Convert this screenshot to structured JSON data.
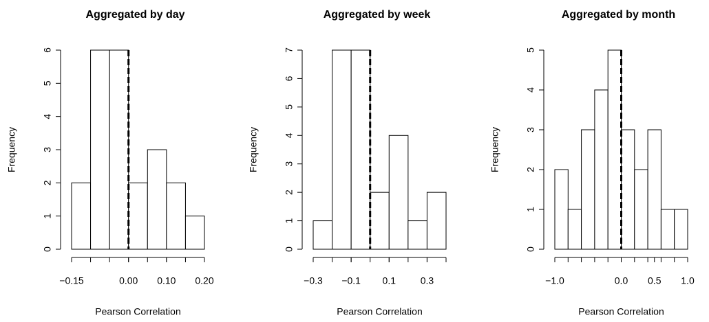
{
  "chart_data": [
    {
      "type": "histogram",
      "title": "Aggregated by day",
      "x_label": "Pearson Correlation",
      "y_label": "Frequency",
      "bins": [
        -0.15,
        -0.1,
        -0.05,
        0,
        0.05,
        0.1,
        0.15,
        0.2
      ],
      "values": [
        2,
        6,
        6,
        2,
        3,
        2,
        1
      ],
      "xlim": [
        -0.15,
        0.2
      ],
      "xticks": [
        {
          "value": -0.15,
          "label": "−0.15"
        },
        {
          "value": 0,
          "label": "0.00"
        },
        {
          "value": 0.1,
          "label": "0.10"
        },
        {
          "value": 0.2,
          "label": "0.20"
        }
      ],
      "ylim": [
        0,
        6
      ],
      "yticks": [
        0,
        1,
        2,
        3,
        4,
        5,
        6
      ],
      "vline": 0,
      "color": "#ffffff"
    },
    {
      "type": "histogram",
      "title": "Aggregated by week",
      "x_label": "Pearson Correlation",
      "y_label": "Frequency",
      "bins": [
        -0.3,
        -0.2,
        -0.1,
        0,
        0.1,
        0.2,
        0.3,
        0.4
      ],
      "values": [
        1,
        7,
        7,
        2,
        4,
        1,
        2
      ],
      "xlim": [
        -0.3,
        0.4
      ],
      "xticks": [
        {
          "value": -0.3,
          "label": "−0.3"
        },
        {
          "value": -0.1,
          "label": "−0.1"
        },
        0.1,
        0.3
      ],
      "ylim": [
        0,
        7
      ],
      "yticks": [
        0,
        1,
        2,
        3,
        4,
        5,
        6,
        7
      ],
      "vline": 0,
      "color": "#ffffff"
    },
    {
      "type": "histogram",
      "title": "Aggregated by month",
      "x_label": "Pearson Correlation",
      "y_label": "Frequency",
      "bins": [
        -1,
        -0.8,
        -0.6,
        -0.4,
        -0.2,
        0,
        0.2,
        0.4,
        0.6,
        0.8,
        1
      ],
      "values": [
        2,
        1,
        3,
        4,
        5,
        3,
        2,
        3,
        1,
        1
      ],
      "xlim": [
        -1,
        1
      ],
      "xticks": [
        {
          "value": -1,
          "label": "−1.0"
        },
        {
          "value": 0,
          "label": "0.0"
        },
        0.5,
        {
          "value": 1,
          "label": "1.0"
        }
      ],
      "ylim": [
        0,
        5
      ],
      "yticks": [
        0,
        1,
        2,
        3,
        4,
        5
      ],
      "vline": 0,
      "color": "#ffffff"
    }
  ]
}
